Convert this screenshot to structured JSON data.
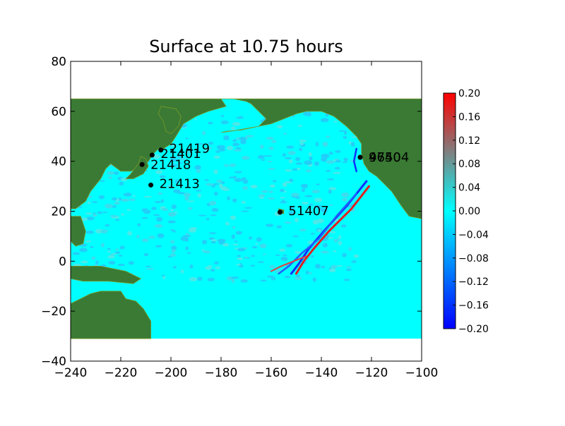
{
  "chart_data": {
    "type": "heatmap",
    "title": "Surface at 10.75 hours",
    "xlabel": "",
    "ylabel": "",
    "xlim": [
      -240,
      -100
    ],
    "ylim": [
      -40,
      80
    ],
    "x_ticks": [
      "−240",
      "−220",
      "−200",
      "−180",
      "−160",
      "−140",
      "−120",
      "−100"
    ],
    "x_tick_values": [
      -240,
      -220,
      -200,
      -180,
      -160,
      -140,
      -120,
      -100
    ],
    "y_ticks": [
      "−40",
      "−20",
      "0",
      "20",
      "40",
      "60",
      "80"
    ],
    "y_tick_values": [
      -40,
      -20,
      0,
      20,
      40,
      60,
      80
    ],
    "grid": false,
    "data_extent": {
      "lon": [
        -240,
        -100
      ],
      "lat": [
        -31,
        65
      ]
    },
    "colorbar": {
      "vmin": -0.2,
      "vmax": 0.2,
      "ticks": [
        "−0.20",
        "−0.16",
        "−0.12",
        "−0.08",
        "−0.04",
        "0.00",
        "0.04",
        "0.08",
        "0.12",
        "0.16",
        "0.20"
      ],
      "tick_values": [
        -0.2,
        -0.16,
        -0.12,
        -0.08,
        -0.04,
        0.0,
        0.04,
        0.08,
        0.12,
        0.16,
        0.2
      ],
      "colors": [
        "#0000ff",
        "#00ffff",
        "#ff0000"
      ]
    },
    "land_color": "#3a7a34",
    "ocean_color": "#00ffff",
    "gauges": [
      {
        "label": "21419",
        "lon": -204,
        "lat": 44.5
      },
      {
        "label": "21401",
        "lon": -207.5,
        "lat": 42.5
      },
      {
        "label": "21418",
        "lon": -211.5,
        "lat": 38.7
      },
      {
        "label": "21413",
        "lon": -208,
        "lat": 30.5
      },
      {
        "label": "51407",
        "lon": -156.5,
        "lat": 19.6
      },
      {
        "label": "46404",
        "lon": -124.5,
        "lat": 41.6
      },
      {
        "label": "9750",
        "lon": -124.5,
        "lat": 41.6
      }
    ]
  }
}
